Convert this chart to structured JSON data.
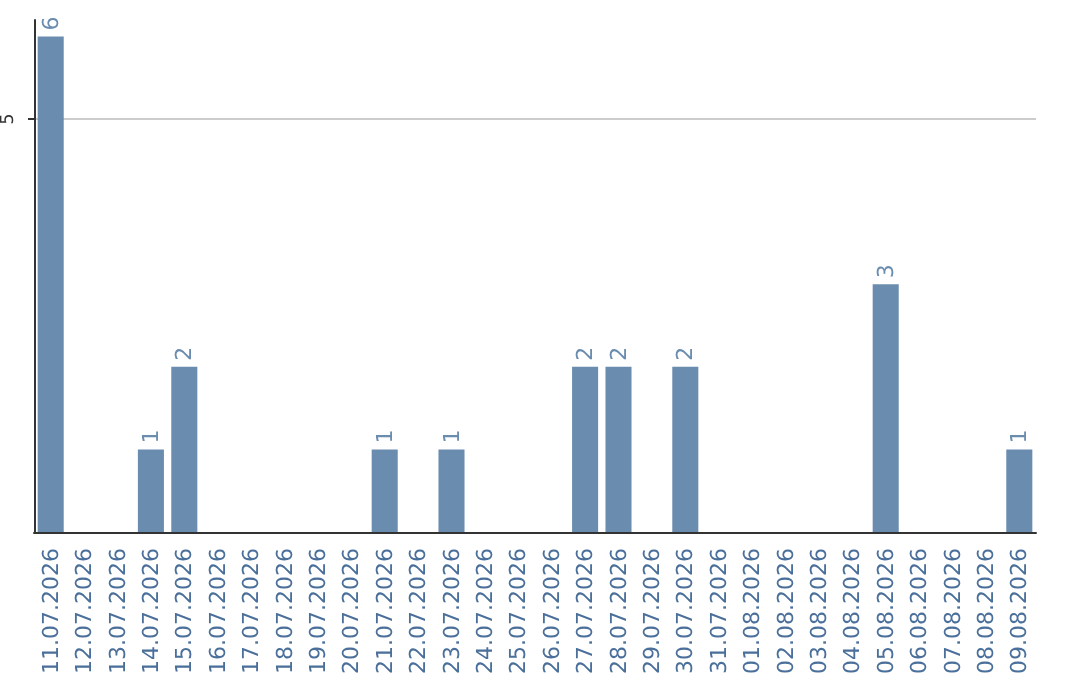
{
  "chart_data": {
    "type": "bar",
    "categories": [
      "11.07.2026",
      "12.07.2026",
      "13.07.2026",
      "14.07.2026",
      "15.07.2026",
      "16.07.2026",
      "17.07.2026",
      "18.07.2026",
      "19.07.2026",
      "20.07.2026",
      "21.07.2026",
      "22.07.2026",
      "23.07.2026",
      "24.07.2026",
      "25.07.2026",
      "26.07.2026",
      "27.07.2026",
      "28.07.2026",
      "29.07.2026",
      "30.07.2026",
      "31.07.2026",
      "01.08.2026",
      "02.08.2026",
      "03.08.2026",
      "04.08.2026",
      "05.08.2026",
      "06.08.2026",
      "07.08.2026",
      "08.08.2026",
      "09.08.2026"
    ],
    "values": [
      6,
      0,
      0,
      1,
      2,
      0,
      0,
      0,
      0,
      0,
      1,
      0,
      1,
      0,
      0,
      0,
      2,
      2,
      0,
      2,
      0,
      0,
      0,
      0,
      0,
      3,
      0,
      0,
      0,
      1
    ],
    "value_labels": [
      "6",
      null,
      null,
      "1",
      "2",
      null,
      null,
      null,
      null,
      null,
      "1",
      null,
      "1",
      null,
      null,
      null,
      "2",
      "2",
      null,
      "2",
      null,
      null,
      null,
      null,
      null,
      "3",
      null,
      null,
      null,
      "1"
    ],
    "color": "#6a8caf",
    "ylim": [
      0,
      6.2
    ],
    "yticks": [
      5
    ],
    "grid": "y"
  }
}
